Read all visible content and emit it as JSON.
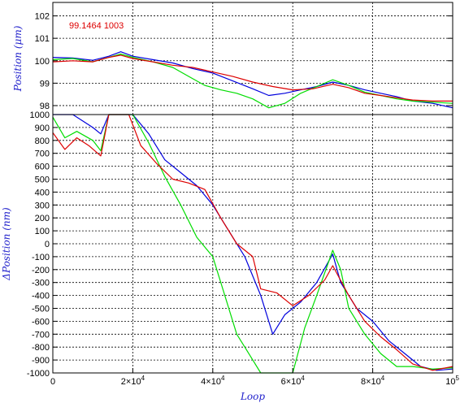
{
  "chart_data": [
    {
      "type": "line",
      "panel": "top",
      "ylabel": "Position  (μm)",
      "annotation": "99.1464 1003",
      "xlim": [
        0,
        100000
      ],
      "ylim": [
        97.6,
        102.6
      ],
      "yticks": [
        98,
        99,
        100,
        101,
        102
      ],
      "ytick_labels": [
        "98",
        "99",
        "100",
        "101",
        "102"
      ],
      "grid": true,
      "series": [
        {
          "color": "#0000dd",
          "points": [
            [
              0,
              100.15
            ],
            [
              5000,
              100.12
            ],
            [
              10000,
              100.02
            ],
            [
              14000,
              100.2
            ],
            [
              17000,
              100.4
            ],
            [
              20000,
              100.2
            ],
            [
              25000,
              100.05
            ],
            [
              30000,
              99.9
            ],
            [
              35000,
              99.65
            ],
            [
              40000,
              99.45
            ],
            [
              45000,
              99.1
            ],
            [
              50000,
              98.75
            ],
            [
              54000,
              98.45
            ],
            [
              58000,
              98.55
            ],
            [
              62000,
              98.7
            ],
            [
              66000,
              98.85
            ],
            [
              70000,
              99.05
            ],
            [
              74000,
              98.9
            ],
            [
              78000,
              98.7
            ],
            [
              82000,
              98.55
            ],
            [
              86000,
              98.4
            ],
            [
              90000,
              98.2
            ],
            [
              95000,
              98.1
            ],
            [
              100000,
              97.9
            ]
          ]
        },
        {
          "color": "#00dd00",
          "points": [
            [
              0,
              100.05
            ],
            [
              5000,
              100.1
            ],
            [
              10000,
              99.95
            ],
            [
              14000,
              100.15
            ],
            [
              17000,
              100.3
            ],
            [
              20000,
              100.15
            ],
            [
              25000,
              99.95
            ],
            [
              30000,
              99.7
            ],
            [
              34000,
              99.3
            ],
            [
              38000,
              98.9
            ],
            [
              42000,
              98.7
            ],
            [
              46000,
              98.55
            ],
            [
              50000,
              98.3
            ],
            [
              54000,
              97.9
            ],
            [
              58000,
              98.1
            ],
            [
              62000,
              98.55
            ],
            [
              66000,
              98.85
            ],
            [
              70000,
              99.15
            ],
            [
              74000,
              98.9
            ],
            [
              78000,
              98.6
            ],
            [
              82000,
              98.45
            ],
            [
              86000,
              98.3
            ],
            [
              90000,
              98.2
            ],
            [
              95000,
              98.15
            ],
            [
              100000,
              98.1
            ]
          ]
        },
        {
          "color": "#dd0000",
          "points": [
            [
              0,
              99.95
            ],
            [
              5000,
              100.0
            ],
            [
              10000,
              99.95
            ],
            [
              14000,
              100.15
            ],
            [
              17000,
              100.25
            ],
            [
              20000,
              100.1
            ],
            [
              25000,
              99.95
            ],
            [
              30000,
              99.8
            ],
            [
              35000,
              99.7
            ],
            [
              40000,
              99.5
            ],
            [
              45000,
              99.3
            ],
            [
              50000,
              99.05
            ],
            [
              55000,
              98.85
            ],
            [
              60000,
              98.7
            ],
            [
              65000,
              98.75
            ],
            [
              70000,
              98.95
            ],
            [
              74000,
              98.8
            ],
            [
              78000,
              98.55
            ],
            [
              82000,
              98.45
            ],
            [
              86000,
              98.35
            ],
            [
              90000,
              98.25
            ],
            [
              95000,
              98.2
            ],
            [
              100000,
              98.2
            ]
          ]
        }
      ]
    },
    {
      "type": "line",
      "panel": "bottom",
      "xlabel": "Loop",
      "ylabel": "ΔPosition  (nm)",
      "xlim": [
        0,
        100000
      ],
      "ylim": [
        -1000,
        1000
      ],
      "xticks": [
        0,
        20000,
        40000,
        60000,
        80000,
        100000
      ],
      "xtick_labels": [
        {
          "base": "0",
          "exp": ""
        },
        {
          "base": "2×10",
          "exp": "4"
        },
        {
          "base": "4×10",
          "exp": "4"
        },
        {
          "base": "6×10",
          "exp": "4"
        },
        {
          "base": "8×10",
          "exp": "4"
        },
        {
          "base": "10",
          "exp": "5"
        }
      ],
      "yticks": [
        1000,
        900,
        800,
        700,
        600,
        500,
        400,
        300,
        200,
        100,
        0,
        -100,
        -200,
        -300,
        -400,
        -500,
        -600,
        -700,
        -800,
        -900,
        -1000
      ],
      "ytick_labels": [
        "1000",
        "900",
        "800",
        "700",
        "600",
        "500",
        "400",
        "300",
        "200",
        "100",
        "0",
        "-100",
        "-200",
        "-300",
        "-400",
        "-500",
        "-600",
        "-700",
        "-800",
        "-900",
        "-1000"
      ],
      "grid": true,
      "series": [
        {
          "color": "#0000dd",
          "points": [
            [
              0,
              1000
            ],
            [
              5000,
              1000
            ],
            [
              10000,
              900
            ],
            [
              12000,
              850
            ],
            [
              14000,
              1000
            ],
            [
              20000,
              1000
            ],
            [
              24000,
              850
            ],
            [
              28000,
              650
            ],
            [
              32000,
              550
            ],
            [
              36000,
              450
            ],
            [
              40000,
              300
            ],
            [
              44000,
              100
            ],
            [
              48000,
              -100
            ],
            [
              52000,
              -400
            ],
            [
              55000,
              -700
            ],
            [
              58000,
              -550
            ],
            [
              62000,
              -450
            ],
            [
              66000,
              -300
            ],
            [
              70000,
              -80
            ],
            [
              72000,
              -300
            ],
            [
              76000,
              -500
            ],
            [
              80000,
              -600
            ],
            [
              84000,
              -750
            ],
            [
              88000,
              -850
            ],
            [
              92000,
              -950
            ],
            [
              96000,
              -980
            ],
            [
              100000,
              -970
            ]
          ]
        },
        {
          "color": "#00dd00",
          "points": [
            [
              0,
              980
            ],
            [
              3000,
              820
            ],
            [
              6000,
              870
            ],
            [
              10000,
              800
            ],
            [
              12000,
              720
            ],
            [
              14000,
              1000
            ],
            [
              20000,
              1000
            ],
            [
              24000,
              780
            ],
            [
              28000,
              520
            ],
            [
              32000,
              300
            ],
            [
              36000,
              50
            ],
            [
              40000,
              -100
            ],
            [
              43000,
              -400
            ],
            [
              46000,
              -700
            ],
            [
              48000,
              -800
            ],
            [
              50000,
              -900
            ],
            [
              52000,
              -1000
            ],
            [
              60000,
              -1000
            ],
            [
              63000,
              -650
            ],
            [
              66000,
              -400
            ],
            [
              70000,
              -50
            ],
            [
              72000,
              -200
            ],
            [
              74000,
              -500
            ],
            [
              78000,
              -700
            ],
            [
              82000,
              -850
            ],
            [
              86000,
              -950
            ],
            [
              90000,
              -950
            ],
            [
              95000,
              -970
            ],
            [
              100000,
              -960
            ]
          ]
        },
        {
          "color": "#dd0000",
          "points": [
            [
              0,
              860
            ],
            [
              3000,
              730
            ],
            [
              6000,
              820
            ],
            [
              9000,
              760
            ],
            [
              12000,
              680
            ],
            [
              14000,
              1000
            ],
            [
              19000,
              1000
            ],
            [
              22000,
              760
            ],
            [
              26000,
              620
            ],
            [
              30000,
              500
            ],
            [
              34000,
              470
            ],
            [
              38000,
              420
            ],
            [
              42000,
              200
            ],
            [
              46000,
              0
            ],
            [
              50000,
              -100
            ],
            [
              52000,
              -350
            ],
            [
              56000,
              -380
            ],
            [
              60000,
              -480
            ],
            [
              64000,
              -400
            ],
            [
              68000,
              -280
            ],
            [
              70000,
              -170
            ],
            [
              74000,
              -400
            ],
            [
              78000,
              -600
            ],
            [
              82000,
              -720
            ],
            [
              86000,
              -820
            ],
            [
              90000,
              -930
            ],
            [
              95000,
              -980
            ],
            [
              100000,
              -950
            ]
          ]
        }
      ]
    }
  ]
}
